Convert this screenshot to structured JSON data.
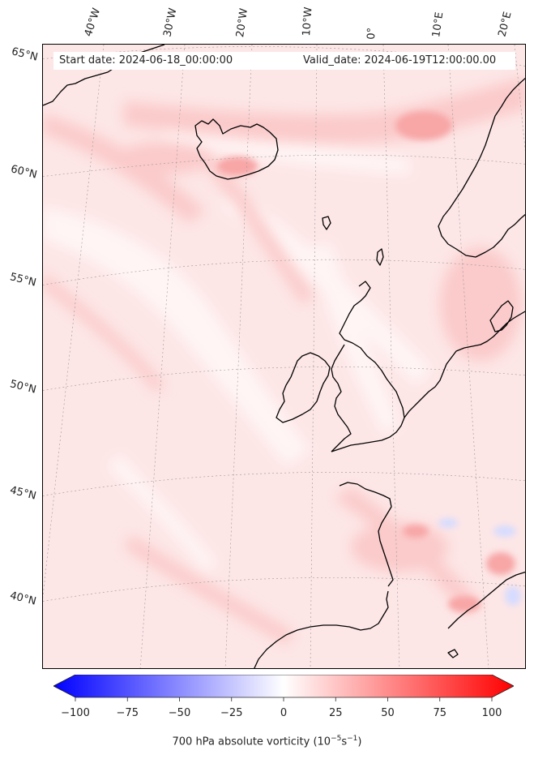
{
  "header": {
    "start_date": "Start date: 2024-06-18_00:00:00",
    "valid_date": "Valid_date: 2024-06-19T12:00:00.00"
  },
  "map": {
    "lon_labels": [
      "40°W",
      "30°W",
      "20°W",
      "10°W",
      "0°",
      "10°E",
      "20°E"
    ],
    "lat_labels": [
      "65°N",
      "60°N",
      "55°N",
      "50°N",
      "45°N",
      "40°N"
    ],
    "field_colors": {
      "background": "#fde6e6",
      "light": "#fff5f5",
      "medium": "#fbcaca",
      "strong": "#f8a6a6",
      "negative": "#d6dcff",
      "coast": "#000000"
    }
  },
  "colorbar": {
    "title": "700 hPa absolute vorticity (10",
    "title_exp1": "−5",
    "title_mid": "s",
    "title_exp2": "−1",
    "title_end": ")",
    "min": -100,
    "max": 100,
    "tick_labels": [
      "−100",
      "−75",
      "−50",
      "−25",
      "0",
      "25",
      "50",
      "75",
      "100"
    ],
    "color_low": "#0000ff",
    "color_mid": "#ffffff",
    "color_high": "#ff0000"
  }
}
